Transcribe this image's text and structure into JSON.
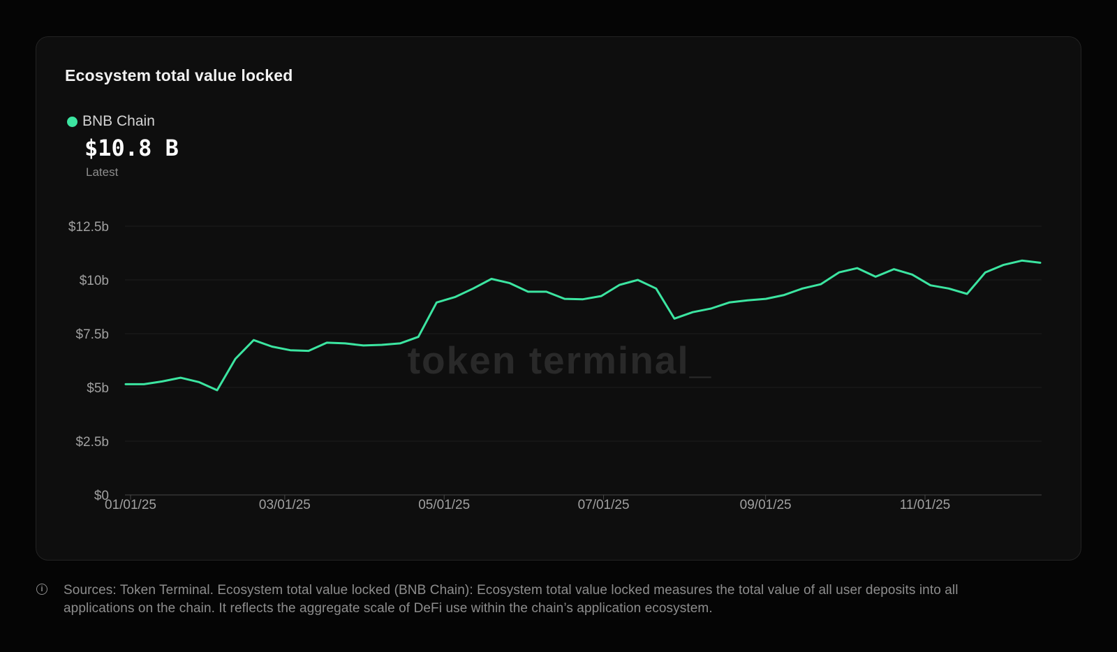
{
  "colors": {
    "accent_green": "#3ce5a1",
    "page_bg": "#050505",
    "card_bg": "#0e0e0e",
    "card_border": "#232323",
    "grid_line": "#1f1f1f",
    "axis_line": "#474747",
    "axis_label": "#a0a0a0",
    "title_text": "#f2f2f2",
    "muted_text": "#8d8d8d",
    "watermark": "#292929"
  },
  "card": {
    "title": "Ecosystem total value locked",
    "legend": {
      "series_label": "BNB Chain",
      "latest_value": "$10.8 B",
      "latest_caption": "Latest"
    },
    "watermark": "token terminal_"
  },
  "footer": {
    "lines": [
      "Sources: Token Terminal. Ecosystem total value locked (BNB Chain): Ecosystem total value locked measures the total value of all user deposits into all",
      "applications on the chain. It reflects the aggregate scale of DeFi use within the chain’s application ecosystem."
    ]
  },
  "chart_data": {
    "type": "line",
    "title": "Ecosystem total value locked",
    "xlabel": "",
    "ylabel": "",
    "unit": "USD billions",
    "ylim": [
      0,
      12.5
    ],
    "grid": true,
    "legend_position": "top-left",
    "y_ticks": [
      {
        "label": "$0",
        "value": 0
      },
      {
        "label": "$2.5b",
        "value": 2.5
      },
      {
        "label": "$5b",
        "value": 5
      },
      {
        "label": "$7.5b",
        "value": 7.5
      },
      {
        "label": "$10b",
        "value": 10
      },
      {
        "label": "$12.5b",
        "value": 12.5
      }
    ],
    "x_ticks": [
      {
        "label": "01/01/25",
        "day": 0
      },
      {
        "label": "03/01/25",
        "day": 59
      },
      {
        "label": "05/01/25",
        "day": 120
      },
      {
        "label": "07/01/25",
        "day": 181
      },
      {
        "label": "09/01/25",
        "day": 243
      },
      {
        "label": "11/01/25",
        "day": 304
      }
    ],
    "x": [
      "01/01/25",
      "01/08/25",
      "01/15/25",
      "01/22/25",
      "01/29/25",
      "02/05/25",
      "02/12/25",
      "02/19/25",
      "02/26/25",
      "03/05/25",
      "03/12/25",
      "03/19/25",
      "03/26/25",
      "04/02/25",
      "04/09/25",
      "04/16/25",
      "04/23/25",
      "04/30/25",
      "05/07/25",
      "05/14/25",
      "05/21/25",
      "05/28/25",
      "06/04/25",
      "06/11/25",
      "06/18/25",
      "06/25/25",
      "07/02/25",
      "07/09/25",
      "07/16/25",
      "07/23/25",
      "07/30/25",
      "08/06/25",
      "08/13/25",
      "08/20/25",
      "08/27/25",
      "09/03/25",
      "09/10/25",
      "09/17/25",
      "09/24/25",
      "10/01/25",
      "10/08/25",
      "10/15/25",
      "10/22/25",
      "10/29/25",
      "11/05/25",
      "11/12/25",
      "11/19/25",
      "11/26/25",
      "12/03/25",
      "12/10/25",
      "12/17/25"
    ],
    "series": [
      {
        "name": "BNB Chain",
        "color": "#3ce5a1",
        "values": [
          5.15,
          5.15,
          5.28,
          5.45,
          5.25,
          4.87,
          6.33,
          7.2,
          6.9,
          6.73,
          6.7,
          7.08,
          7.05,
          6.95,
          6.98,
          7.05,
          7.35,
          8.95,
          9.2,
          9.6,
          10.05,
          9.85,
          9.45,
          9.45,
          9.12,
          9.1,
          9.25,
          9.77,
          10.0,
          9.6,
          8.2,
          8.5,
          8.67,
          8.95,
          9.05,
          9.12,
          9.3,
          9.6,
          9.8,
          10.35,
          10.55,
          10.15,
          10.5,
          10.25,
          9.75,
          9.6,
          9.35,
          10.35,
          10.7,
          10.9,
          10.8
        ]
      }
    ]
  }
}
